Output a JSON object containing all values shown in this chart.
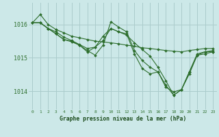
{
  "bg_color": "#cce8e8",
  "grid_color": "#aacccc",
  "line_color": "#2d6e2d",
  "marker_color": "#2d6e2d",
  "xlabel": "Graphe pression niveau de la mer (hPa)",
  "xlabel_color": "#1a4a1a",
  "ylabel_ticks": [
    1014,
    1015,
    1016
  ],
  "xlim": [
    -0.5,
    23.5
  ],
  "ylim": [
    1013.45,
    1016.65
  ],
  "series": [
    [
      1016.05,
      1016.3,
      1016.0,
      1015.85,
      1015.75,
      1015.65,
      1015.6,
      1015.55,
      1015.5,
      1015.48,
      1015.45,
      1015.42,
      1015.38,
      1015.35,
      1015.3,
      1015.28,
      1015.25,
      1015.22,
      1015.2,
      1015.18,
      1015.22,
      1015.25,
      1015.28,
      1015.28
    ],
    [
      1016.05,
      1016.05,
      1015.88,
      1015.78,
      1015.62,
      1015.52,
      1015.4,
      1015.28,
      1015.32,
      1015.65,
      1015.88,
      1015.78,
      1015.68,
      1015.45,
      1015.25,
      1015.05,
      1014.72,
      1014.32,
      1013.88,
      1014.05,
      1014.52,
      1015.08,
      1015.18,
      1015.18
    ],
    [
      1016.05,
      1016.05,
      1015.88,
      1015.72,
      1015.55,
      1015.5,
      1015.38,
      1015.22,
      1015.08,
      1015.38,
      1016.08,
      1015.92,
      1015.78,
      1015.22,
      1014.92,
      1014.72,
      1014.58,
      1014.18,
      1013.88,
      1014.05,
      1014.58,
      1015.08,
      1015.12,
      1015.18
    ],
    [
      1016.05,
      1016.05,
      1015.88,
      1015.72,
      1015.55,
      1015.48,
      1015.38,
      1015.18,
      1015.32,
      1015.52,
      1015.88,
      1015.78,
      1015.72,
      1015.12,
      1014.68,
      1014.52,
      1014.58,
      1014.12,
      1013.98,
      1014.05,
      1014.58,
      1015.12,
      1015.18,
      1015.22
    ]
  ],
  "xticks": [
    0,
    1,
    2,
    3,
    4,
    5,
    6,
    7,
    8,
    9,
    10,
    11,
    12,
    13,
    14,
    15,
    16,
    17,
    18,
    19,
    20,
    21,
    22,
    23
  ]
}
